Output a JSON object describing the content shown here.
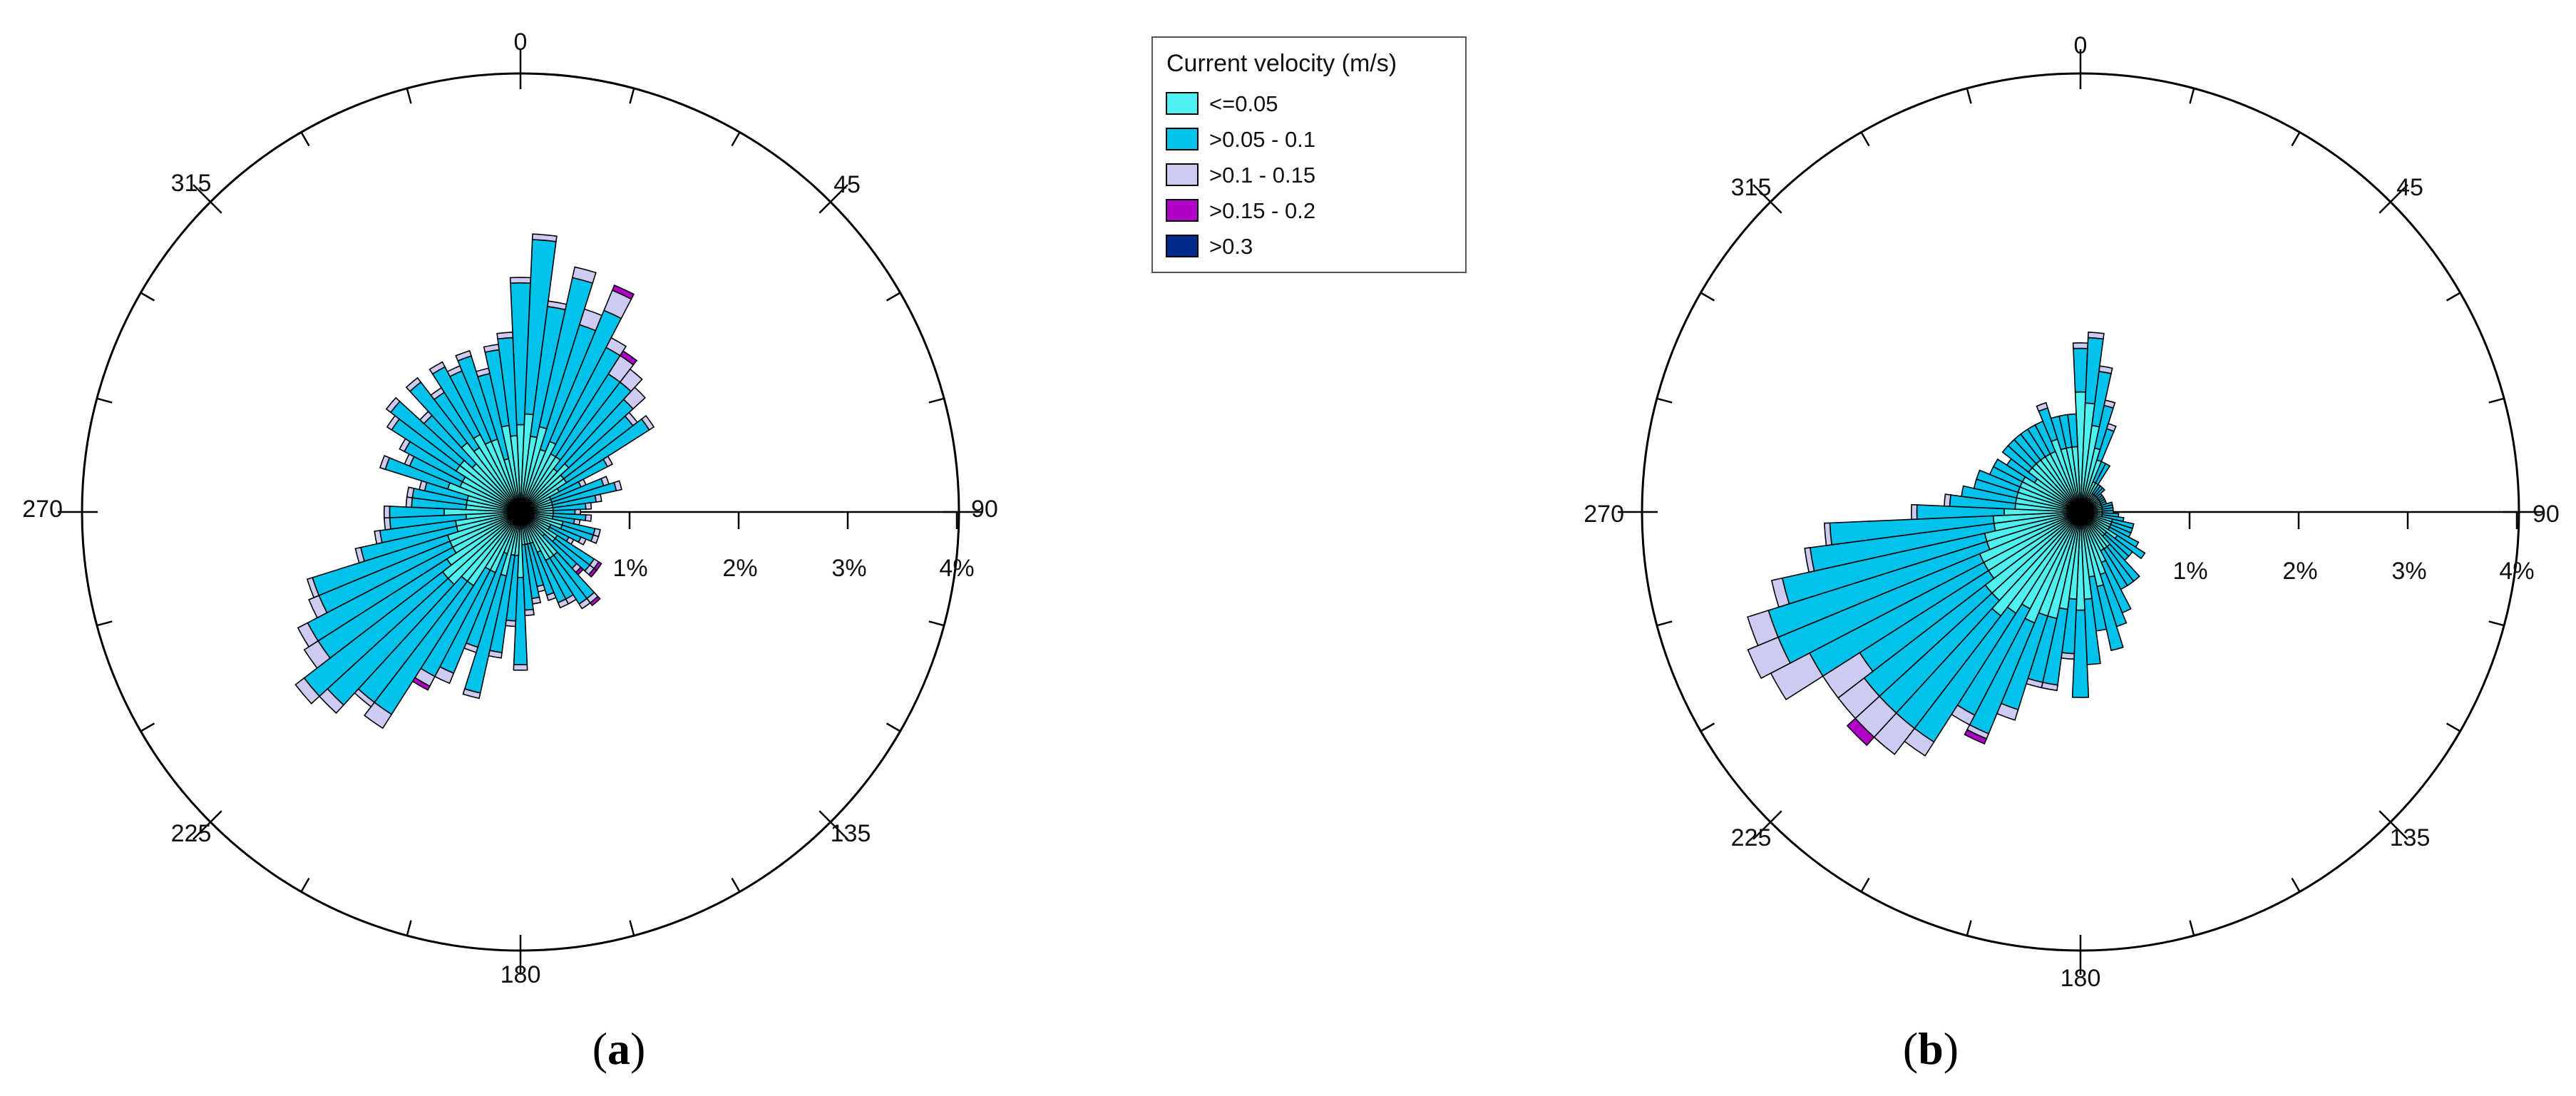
{
  "legend": {
    "title": "Current velocity (m/s)",
    "classes": [
      {
        "label": "<=0.05",
        "color": "#4FF0F0"
      },
      {
        "label": ">0.05 - 0.1",
        "color": "#00C2EA"
      },
      {
        "label": ">0.1 - 0.15",
        "color": "#CCCCF2"
      },
      {
        "label": ">0.15 - 0.2",
        "color": "#B000C8"
      },
      {
        "label": ">0.3",
        "color": "#002A8C"
      }
    ]
  },
  "chart_data": [
    {
      "type": "rose",
      "panel_label": "a",
      "direction_labels": [
        "0",
        "45",
        "90",
        "135",
        "180",
        "225",
        "270",
        "315"
      ],
      "radial_ticks": [
        "1%",
        "2%",
        "3%",
        "4%"
      ],
      "rmax_percent": 4,
      "bin_width_deg": 5,
      "directions": [
        0,
        5,
        10,
        15,
        20,
        25,
        30,
        35,
        40,
        45,
        50,
        55,
        60,
        65,
        70,
        75,
        80,
        85,
        90,
        95,
        100,
        105,
        110,
        115,
        120,
        125,
        130,
        135,
        140,
        145,
        150,
        155,
        160,
        165,
        170,
        175,
        180,
        185,
        190,
        195,
        200,
        205,
        210,
        215,
        220,
        225,
        230,
        235,
        240,
        245,
        250,
        255,
        260,
        265,
        270,
        275,
        280,
        285,
        290,
        295,
        300,
        305,
        310,
        315,
        320,
        325,
        330,
        335,
        340,
        345,
        350,
        355
      ],
      "series": [
        {
          "name": "<=0.05",
          "values": [
            0.8,
            0.9,
            0.7,
            0.8,
            0.6,
            0.7,
            0.6,
            0.6,
            0.5,
            0.6,
            0.5,
            0.5,
            0.4,
            0.3,
            0.3,
            0.3,
            0.3,
            0.3,
            0.3,
            0.3,
            0.3,
            0.4,
            0.4,
            0.3,
            0.3,
            0.4,
            0.4,
            0.3,
            0.5,
            0.5,
            0.5,
            0.4,
            0.3,
            0.3,
            0.3,
            0.3,
            0.6,
            0.4,
            0.4,
            0.6,
            0.4,
            0.6,
            0.6,
            0.8,
            0.8,
            0.9,
            0.9,
            0.8,
            0.7,
            0.7,
            0.7,
            0.6,
            0.6,
            0.5,
            0.7,
            0.5,
            0.5,
            0.5,
            0.7,
            0.6,
            0.6,
            0.7,
            0.7,
            0.6,
            0.8,
            0.7,
            0.8,
            0.7,
            0.7,
            0.5,
            0.8,
            0.7
          ]
        },
        {
          "name": ">0.05 - 0.1",
          "values": [
            1.3,
            1.6,
            1.2,
            1.4,
            1.2,
            1.3,
            1.1,
            0.9,
            1.0,
            0.8,
            0.8,
            0.9,
            0.5,
            0.3,
            0.5,
            0.6,
            0.4,
            0.3,
            0.2,
            0.3,
            0.2,
            0.3,
            0.3,
            0.3,
            0.2,
            0.4,
            0.4,
            0.4,
            0.5,
            0.5,
            0.4,
            0.5,
            0.5,
            0.4,
            0.5,
            0.6,
            0.8,
            0.6,
            0.9,
            1.1,
            0.9,
            1.0,
            1.1,
            1.4,
            1.4,
            1.5,
            1.6,
            1.4,
            1.5,
            1.3,
            1.3,
            0.9,
            0.7,
            0.7,
            0.5,
            0.5,
            0.5,
            0.4,
            0.6,
            0.5,
            0.6,
            0.7,
            0.8,
            0.6,
            0.7,
            0.6,
            0.7,
            0.7,
            0.8,
            0.8,
            0.7,
            0.9
          ]
        },
        {
          "name": ">0.1 - 0.15",
          "values": [
            0.05,
            0.05,
            0.05,
            0.1,
            0.15,
            0.2,
            0.1,
            0.2,
            0.15,
            0.15,
            0.05,
            0.05,
            0.05,
            0.05,
            0.05,
            0.05,
            0.05,
            0.05,
            0.05,
            0.05,
            0.05,
            0.05,
            0.05,
            0.05,
            0.05,
            0.05,
            0.05,
            0.05,
            0.05,
            0.05,
            0.05,
            0.05,
            0.05,
            0.05,
            0.05,
            0.05,
            0.05,
            0.05,
            0.05,
            0.05,
            0.05,
            0.1,
            0.1,
            0.15,
            0.05,
            0.1,
            0.1,
            0.15,
            0.1,
            0.1,
            0.05,
            0.05,
            0.05,
            0.05,
            0.05,
            0.05,
            0.05,
            0.05,
            0.05,
            0.05,
            0.05,
            0.05,
            0.05,
            0.05,
            0.05,
            0.05,
            0.05,
            0.05,
            0.05,
            0.05,
            0.05,
            0.05
          ]
        },
        {
          "name": ">0.15 - 0.2",
          "values": [
            0,
            0,
            0,
            0,
            0,
            0.05,
            0,
            0.05,
            0,
            0,
            0,
            0,
            0,
            0,
            0,
            0,
            0,
            0,
            0,
            0,
            0,
            0,
            0,
            0,
            0,
            0.03,
            0.03,
            0.03,
            0.03,
            0,
            0,
            0,
            0,
            0,
            0,
            0,
            0,
            0,
            0,
            0,
            0,
            0,
            0.04,
            0,
            0,
            0,
            0,
            0,
            0,
            0,
            0,
            0,
            0,
            0,
            0,
            0,
            0,
            0,
            0,
            0,
            0,
            0,
            0,
            0,
            0,
            0,
            0,
            0,
            0,
            0,
            0,
            0
          ]
        },
        {
          "name": ">0.3",
          "values": [
            0,
            0,
            0,
            0,
            0,
            0,
            0,
            0,
            0,
            0,
            0,
            0,
            0,
            0,
            0,
            0,
            0,
            0,
            0,
            0,
            0,
            0,
            0,
            0,
            0,
            0,
            0,
            0,
            0,
            0,
            0,
            0,
            0,
            0,
            0,
            0,
            0,
            0,
            0,
            0,
            0,
            0,
            0,
            0,
            0,
            0,
            0,
            0,
            0,
            0,
            0,
            0,
            0,
            0,
            0,
            0,
            0,
            0,
            0,
            0,
            0,
            0,
            0,
            0,
            0,
            0,
            0,
            0,
            0,
            0,
            0,
            0
          ]
        }
      ]
    },
    {
      "type": "rose",
      "panel_label": "b",
      "direction_labels": [
        "0",
        "45",
        "90",
        "135",
        "180",
        "225",
        "270",
        "315"
      ],
      "radial_ticks": [
        "1%",
        "2%",
        "3%",
        "4%"
      ],
      "rmax_percent": 4,
      "bin_width_deg": 5,
      "directions": [
        0,
        5,
        10,
        15,
        20,
        25,
        30,
        35,
        40,
        45,
        50,
        55,
        60,
        65,
        70,
        75,
        80,
        85,
        90,
        95,
        100,
        105,
        110,
        115,
        120,
        125,
        130,
        135,
        140,
        145,
        150,
        155,
        160,
        165,
        170,
        175,
        180,
        185,
        190,
        195,
        200,
        205,
        210,
        215,
        220,
        225,
        230,
        235,
        240,
        245,
        250,
        255,
        260,
        265,
        270,
        275,
        280,
        285,
        290,
        295,
        300,
        305,
        310,
        315,
        320,
        325,
        330,
        335,
        340,
        345,
        350,
        355
      ],
      "series": [
        {
          "name": "<=0.05",
          "values": [
            1.1,
            1.0,
            0.8,
            0.6,
            0.5,
            0.3,
            0.3,
            0.2,
            0.2,
            0.2,
            0.2,
            0.2,
            0.2,
            0.2,
            0.2,
            0.2,
            0.2,
            0.2,
            0.2,
            0.2,
            0.2,
            0.3,
            0.3,
            0.3,
            0.3,
            0.4,
            0.3,
            0.3,
            0.4,
            0.4,
            0.4,
            0.5,
            0.6,
            0.7,
            0.6,
            0.8,
            0.9,
            0.8,
            0.9,
            1.0,
            1.0,
            1.1,
            1.0,
            1.1,
            1.2,
            1.1,
            1.1,
            1.0,
            1.0,
            1.0,
            0.9,
            0.9,
            0.8,
            0.8,
            0.7,
            0.6,
            0.6,
            0.6,
            0.6,
            0.6,
            0.6,
            0.5,
            0.6,
            0.6,
            0.6,
            0.6,
            0.6,
            0.6,
            0.7,
            0.6,
            0.6,
            0.6
          ]
        },
        {
          "name": ">0.05 - 0.1",
          "values": [
            0.4,
            0.6,
            0.5,
            0.4,
            0.3,
            0.2,
            0.2,
            0.1,
            0.1,
            0.1,
            0.05,
            0.05,
            0.05,
            0.05,
            0.05,
            0.1,
            0.1,
            0.1,
            0.1,
            0.15,
            0.2,
            0.2,
            0.2,
            0.2,
            0.3,
            0.3,
            0.3,
            0.3,
            0.4,
            0.4,
            0.4,
            0.5,
            0.5,
            0.6,
            0.5,
            0.6,
            0.8,
            0.5,
            0.7,
            0.6,
            0.9,
            1.1,
            1.1,
            1.4,
            1.3,
            1.4,
            1.4,
            1.4,
            1.8,
            2.0,
            2.1,
            1.9,
            1.7,
            1.5,
            0.8,
            0.6,
            0.5,
            0.4,
            0.4,
            0.3,
            0.3,
            0.3,
            0.3,
            0.3,
            0.3,
            0.3,
            0.3,
            0.3,
            0.3,
            0.3,
            0.3,
            0.3
          ]
        },
        {
          "name": ">0.1 - 0.15",
          "values": [
            0.05,
            0.05,
            0.05,
            0.05,
            0.05,
            0,
            0,
            0,
            0,
            0,
            0,
            0,
            0,
            0,
            0,
            0,
            0,
            0,
            0,
            0,
            0,
            0,
            0,
            0,
            0,
            0,
            0,
            0,
            0,
            0,
            0,
            0,
            0,
            0,
            0,
            0,
            0,
            0.05,
            0.05,
            0.05,
            0.1,
            0.05,
            0.1,
            0.15,
            0.3,
            0.3,
            0.3,
            0.4,
            0.4,
            0.3,
            0.2,
            0.1,
            0.05,
            0.05,
            0.05,
            0.05,
            0,
            0,
            0,
            0,
            0,
            0,
            0,
            0,
            0,
            0,
            0,
            0,
            0.05,
            0,
            0,
            0
          ]
        },
        {
          "name": ">0.15 - 0.2",
          "values": [
            0,
            0,
            0,
            0,
            0,
            0,
            0,
            0,
            0,
            0,
            0,
            0,
            0,
            0,
            0,
            0,
            0,
            0,
            0,
            0,
            0,
            0,
            0,
            0,
            0,
            0,
            0,
            0,
            0,
            0,
            0,
            0,
            0,
            0,
            0,
            0,
            0,
            0,
            0,
            0,
            0,
            0.05,
            0,
            0,
            0,
            0.1,
            0,
            0,
            0,
            0,
            0,
            0,
            0,
            0,
            0,
            0,
            0,
            0,
            0,
            0,
            0,
            0,
            0,
            0,
            0,
            0,
            0,
            0,
            0,
            0,
            0,
            0
          ]
        },
        {
          "name": ">0.3",
          "values": [
            0,
            0,
            0,
            0,
            0,
            0,
            0,
            0,
            0,
            0,
            0,
            0,
            0,
            0,
            0,
            0,
            0,
            0,
            0,
            0,
            0,
            0,
            0,
            0,
            0,
            0,
            0,
            0,
            0,
            0,
            0,
            0,
            0,
            0,
            0,
            0,
            0,
            0,
            0,
            0,
            0,
            0,
            0,
            0,
            0,
            0,
            0,
            0,
            0,
            0,
            0,
            0,
            0,
            0,
            0,
            0,
            0,
            0,
            0,
            0,
            0,
            0,
            0,
            0,
            0,
            0,
            0,
            0,
            0,
            0,
            0,
            0
          ]
        }
      ]
    }
  ]
}
